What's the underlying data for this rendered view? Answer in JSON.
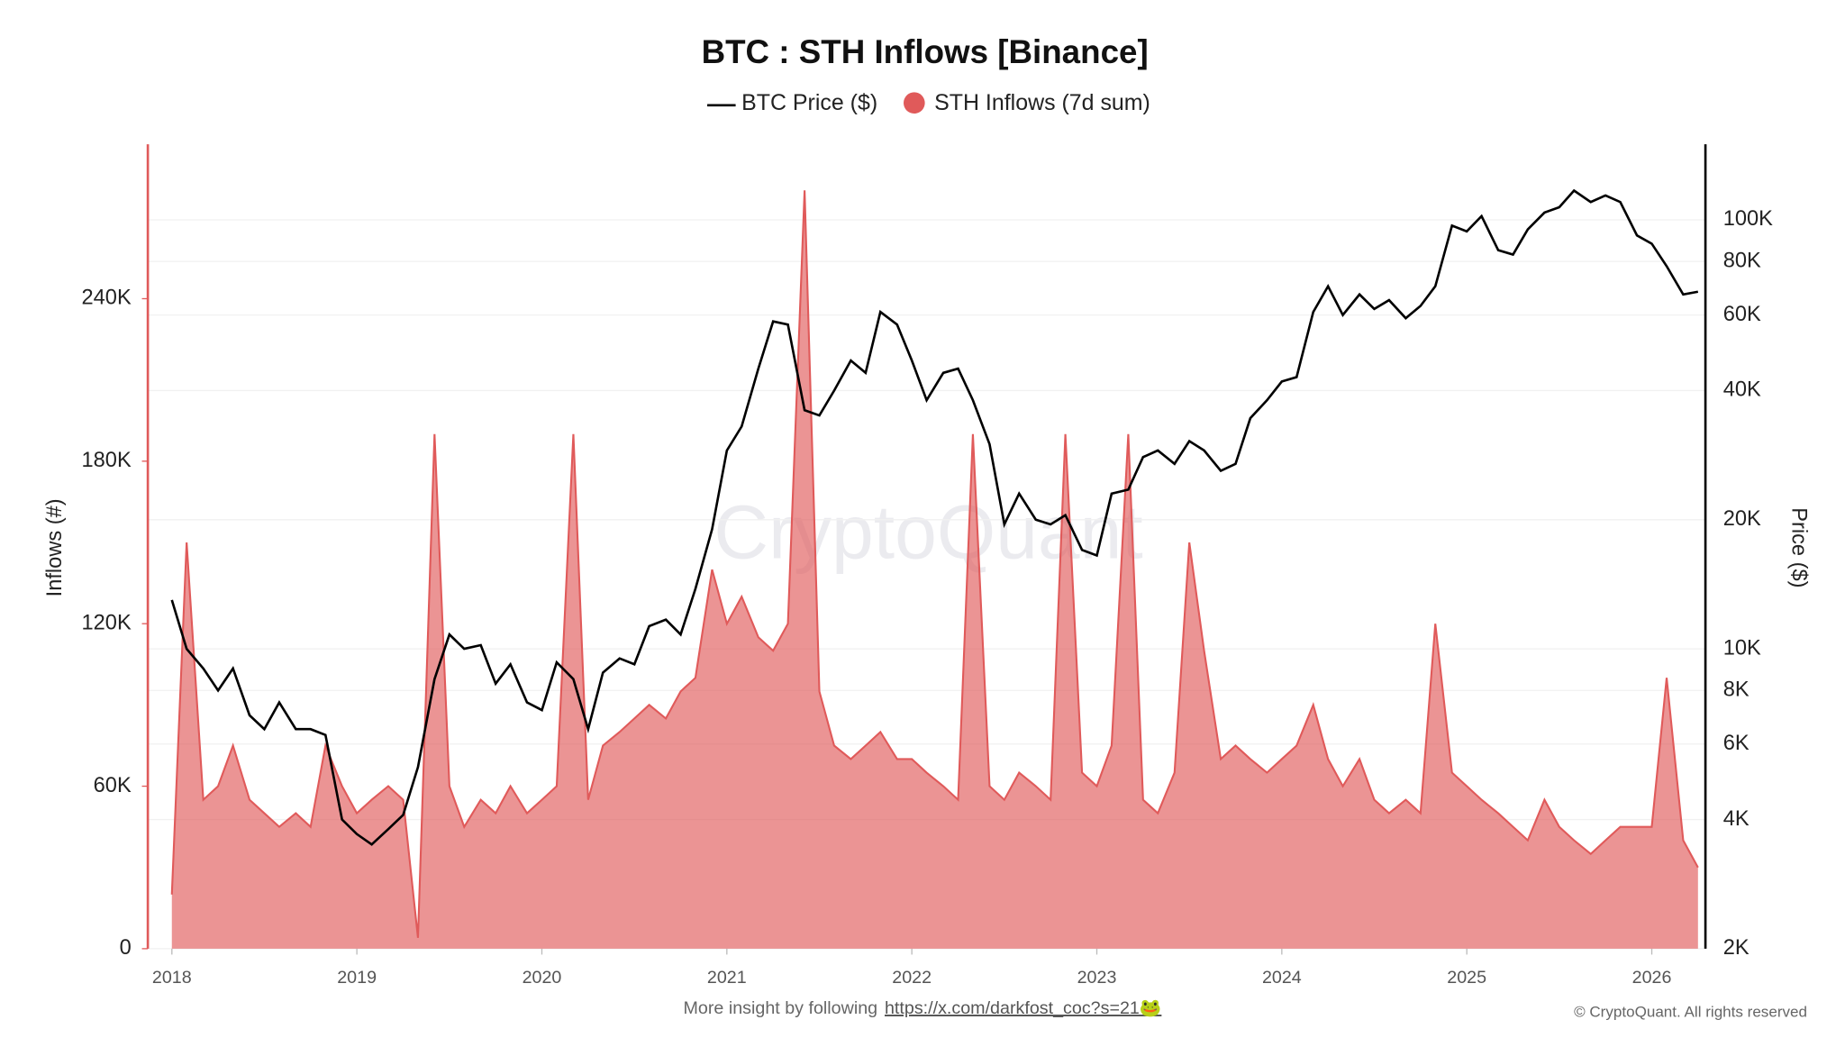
{
  "chart_data": {
    "type": "line",
    "title": "BTC : STH Inflows [Binance]",
    "watermark": "CryptoQuant",
    "ylabel": "Inflows (#)",
    "y2label": "Price ($)",
    "footer_text": "More insight by following",
    "footer_link": "https://x.com/darkfost_coc?s=21🐸",
    "copyright": "© CryptoQuant. All rights reserved",
    "xlim": [
      2017.87,
      2026.29
    ],
    "xticks": [
      2018,
      2019,
      2020,
      2021,
      2022,
      2023,
      2024,
      2025,
      2026
    ],
    "ylim": [
      0,
      297000
    ],
    "yticks": [
      {
        "value": 0,
        "label": "0"
      },
      {
        "value": 60000,
        "label": "60K"
      },
      {
        "value": 120000,
        "label": "120K"
      },
      {
        "value": 180000,
        "label": "180K"
      },
      {
        "value": 240000,
        "label": "240K"
      }
    ],
    "y2lim": [
      2000,
      150000
    ],
    "y2scale": "log",
    "y2ticks": [
      {
        "value": 2000,
        "label": "2K"
      },
      {
        "value": 4000,
        "label": "4K"
      },
      {
        "value": 6000,
        "label": "6K"
      },
      {
        "value": 8000,
        "label": "8K"
      },
      {
        "value": 10000,
        "label": "10K"
      },
      {
        "value": 20000,
        "label": "20K"
      },
      {
        "value": 40000,
        "label": "40K"
      },
      {
        "value": 60000,
        "label": "60K"
      },
      {
        "value": 80000,
        "label": "80K"
      },
      {
        "value": 100000,
        "label": "100K"
      }
    ],
    "x": [
      2018,
      2018.08,
      2018.17,
      2018.25,
      2018.33,
      2018.42,
      2018.5,
      2018.58,
      2018.67,
      2018.75,
      2018.83,
      2018.92,
      2019,
      2019.08,
      2019.17,
      2019.25,
      2019.33,
      2019.42,
      2019.5,
      2019.58,
      2019.67,
      2019.75,
      2019.83,
      2019.92,
      2020,
      2020.08,
      2020.17,
      2020.25,
      2020.33,
      2020.42,
      2020.5,
      2020.58,
      2020.67,
      2020.75,
      2020.83,
      2020.92,
      2021,
      2021.08,
      2021.17,
      2021.25,
      2021.33,
      2021.42,
      2021.5,
      2021.58,
      2021.67,
      2021.75,
      2021.83,
      2021.92,
      2022,
      2022.08,
      2022.17,
      2022.25,
      2022.33,
      2022.42,
      2022.5,
      2022.58,
      2022.67,
      2022.75,
      2022.83,
      2022.92,
      2023,
      2023.08,
      2023.17,
      2023.25,
      2023.33,
      2023.42,
      2023.5,
      2023.58,
      2023.67,
      2023.75,
      2023.83,
      2023.92,
      2024,
      2024.08,
      2024.17,
      2024.25,
      2024.33,
      2024.42,
      2024.5,
      2024.58,
      2024.67,
      2024.75,
      2024.83,
      2024.92,
      2025,
      2025.08,
      2025.17,
      2025.25,
      2025.33,
      2025.42,
      2025.5,
      2025.58,
      2025.67,
      2025.75,
      2025.83,
      2025.92,
      2026,
      2026.08,
      2026.17,
      2026.25
    ],
    "series": [
      {
        "name": "BTC Price ($)",
        "color": "#000000",
        "axis": "y2",
        "type": "line",
        "values": [
          13000,
          10000,
          9000,
          8000,
          9000,
          7000,
          6500,
          7500,
          6500,
          6500,
          6300,
          4000,
          3700,
          3500,
          3800,
          4100,
          5300,
          8500,
          10800,
          10000,
          10200,
          8300,
          9200,
          7500,
          7200,
          9300,
          8500,
          6500,
          8800,
          9500,
          9200,
          11300,
          11700,
          10800,
          13800,
          19000,
          29000,
          33000,
          45000,
          58000,
          57000,
          36000,
          35000,
          40000,
          47000,
          44000,
          61000,
          57000,
          47000,
          38000,
          44000,
          45000,
          38000,
          30000,
          19500,
          23000,
          20000,
          19500,
          20500,
          17000,
          16500,
          23000,
          23500,
          28000,
          29000,
          27000,
          30500,
          29000,
          26000,
          27000,
          34500,
          38000,
          42000,
          43000,
          61000,
          70000,
          60000,
          67000,
          62000,
          65000,
          59000,
          63000,
          70000,
          97000,
          94000,
          102000,
          85000,
          83000,
          95000,
          104000,
          107000,
          117000,
          110000,
          114000,
          110000,
          92000,
          88000,
          78000,
          67000,
          68000
        ]
      },
      {
        "name": "STH Inflows (7d sum)",
        "color": "#e05a5a",
        "type": "area",
        "values": [
          20000,
          150000,
          55000,
          60000,
          75000,
          55000,
          50000,
          45000,
          50000,
          45000,
          75000,
          60000,
          50000,
          55000,
          60000,
          55000,
          4000,
          190000,
          60000,
          45000,
          55000,
          50000,
          60000,
          50000,
          55000,
          60000,
          190000,
          55000,
          75000,
          80000,
          85000,
          90000,
          85000,
          95000,
          100000,
          140000,
          120000,
          130000,
          115000,
          110000,
          120000,
          280000,
          95000,
          75000,
          70000,
          75000,
          80000,
          70000,
          70000,
          65000,
          60000,
          55000,
          190000,
          60000,
          55000,
          65000,
          60000,
          55000,
          190000,
          65000,
          60000,
          75000,
          190000,
          55000,
          50000,
          65000,
          150000,
          110000,
          70000,
          75000,
          70000,
          65000,
          70000,
          75000,
          90000,
          70000,
          60000,
          70000,
          55000,
          50000,
          55000,
          50000,
          120000,
          65000,
          60000,
          55000,
          50000,
          45000,
          40000,
          55000,
          45000,
          40000,
          35000,
          40000,
          45000,
          45000,
          45000,
          100000,
          40000,
          30000
        ]
      }
    ]
  }
}
